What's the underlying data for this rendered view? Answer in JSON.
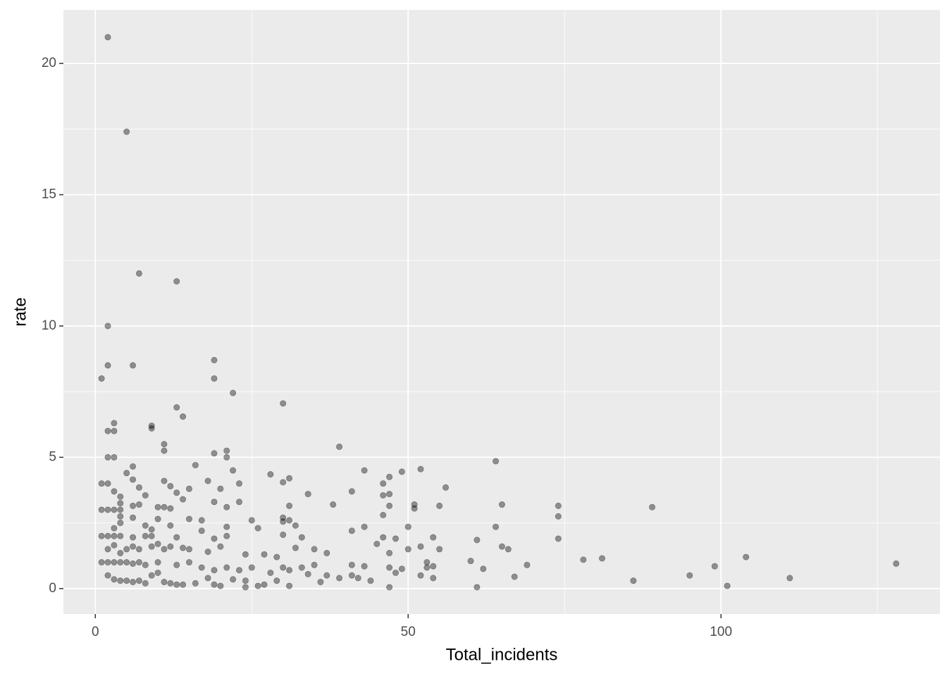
{
  "chart_data": {
    "type": "scatter",
    "x_label": "Total_incidents",
    "y_label": "rate",
    "xlim": [
      -5.1,
      135
    ],
    "ylim": [
      -0.97,
      22.04
    ],
    "xticks": [
      0,
      50,
      100
    ],
    "yticks": [
      0,
      5,
      10,
      15,
      20
    ],
    "x_minor_grid": [
      25,
      75,
      125
    ],
    "y_minor_grid": [
      2.5,
      7.5,
      12.5,
      17.5
    ],
    "grid": true,
    "color": "rgba(0,0,0,0.4)",
    "x": [
      2,
      5,
      7,
      13,
      2,
      2,
      6,
      1,
      19,
      19,
      22,
      30,
      13,
      14,
      9,
      9,
      3,
      2,
      3,
      11,
      11,
      39,
      64,
      2,
      3,
      19,
      21,
      21,
      6,
      16,
      5,
      22,
      28,
      31,
      30,
      43,
      49,
      52,
      47,
      46,
      56,
      1,
      2,
      6,
      11,
      12,
      18,
      23,
      7,
      15,
      20,
      13,
      8,
      4,
      3,
      34,
      41,
      46,
      47,
      14,
      19,
      23,
      31,
      38,
      47,
      51,
      51,
      55,
      65,
      74,
      89,
      1,
      2,
      3,
      4,
      6,
      7,
      10,
      11,
      12,
      21,
      4,
      30,
      30,
      31,
      4,
      6,
      10,
      15,
      17,
      25,
      46,
      74,
      3,
      4,
      8,
      9,
      12,
      17,
      21,
      26,
      32,
      41,
      43,
      50,
      64,
      1,
      2,
      3,
      4,
      6,
      8,
      9,
      13,
      19,
      21,
      30,
      33,
      46,
      48,
      54,
      61,
      74,
      2,
      3,
      4,
      5,
      6,
      7,
      9,
      10,
      11,
      12,
      14,
      15,
      18,
      20,
      24,
      27,
      29,
      32,
      35,
      37,
      45,
      47,
      50,
      52,
      53,
      55,
      60,
      65,
      66,
      69,
      78,
      81,
      104,
      128,
      99,
      1,
      2,
      3,
      4,
      5,
      6,
      7,
      8,
      10,
      13,
      15,
      17,
      19,
      21,
      23,
      25,
      28,
      30,
      31,
      33,
      35,
      41,
      43,
      47,
      49,
      53,
      54,
      62,
      2,
      3,
      4,
      5,
      6,
      7,
      8,
      9,
      10,
      11,
      12,
      13,
      14,
      16,
      18,
      19,
      20,
      22,
      24,
      24,
      26,
      27,
      29,
      31,
      34,
      36,
      37,
      39,
      41,
      42,
      44,
      47,
      48,
      52,
      54,
      61,
      67,
      86,
      95,
      101,
      111
    ],
    "values": [
      21,
      17.4,
      12,
      11.7,
      10,
      8.5,
      8.5,
      8,
      8.7,
      8,
      7.45,
      7.05,
      6.9,
      6.55,
      6.2,
      6.1,
      6.3,
      6,
      6,
      5.5,
      5.25,
      5.4,
      4.85,
      5,
      5,
      5.15,
      5.25,
      5,
      4.65,
      4.7,
      4.4,
      4.5,
      4.35,
      4.2,
      4.05,
      4.5,
      4.45,
      4.55,
      4.25,
      4,
      3.85,
      4,
      4,
      4.15,
      4.1,
      3.9,
      4.1,
      4,
      3.85,
      3.8,
      3.8,
      3.65,
      3.55,
      3.5,
      3.7,
      3.6,
      3.7,
      3.55,
      3.6,
      3.4,
      3.3,
      3.3,
      3.15,
      3.2,
      3.15,
      3.2,
      3.05,
      3.15,
      3.2,
      3.15,
      3.1,
      3,
      3,
      3,
      3.25,
      3.15,
      3.2,
      3.1,
      3.1,
      3.05,
      3.1,
      3,
      2.7,
      2.55,
      2.6,
      2.75,
      2.7,
      2.65,
      2.65,
      2.6,
      2.6,
      2.8,
      2.75,
      2.3,
      2.5,
      2.4,
      2.25,
      2.4,
      2.2,
      2.35,
      2.3,
      2.4,
      2.2,
      2.35,
      2.35,
      2.35,
      2,
      2,
      2,
      2,
      1.95,
      2,
      2,
      1.95,
      1.9,
      2,
      2.05,
      1.95,
      1.95,
      1.9,
      1.95,
      1.85,
      1.9,
      1.5,
      1.65,
      1.35,
      1.5,
      1.6,
      1.5,
      1.6,
      1.7,
      1.5,
      1.6,
      1.55,
      1.5,
      1.4,
      1.6,
      1.3,
      1.3,
      1.2,
      1.55,
      1.5,
      1.35,
      1.7,
      1.35,
      1.5,
      1.6,
      1,
      1.5,
      1.05,
      1.6,
      1.5,
      0.9,
      1.1,
      1.15,
      1.2,
      0.95,
      0.85,
      1,
      1,
      1,
      1,
      1,
      0.95,
      1,
      0.9,
      1,
      0.9,
      1,
      0.8,
      0.7,
      0.8,
      0.7,
      0.8,
      0.6,
      0.8,
      0.7,
      0.8,
      0.9,
      0.9,
      0.85,
      0.8,
      0.75,
      0.8,
      0.85,
      0.75,
      0.5,
      0.35,
      0.3,
      0.3,
      0.25,
      0.3,
      0.2,
      0.5,
      0.6,
      0.25,
      0.2,
      0.15,
      0.15,
      0.2,
      0.4,
      0.15,
      0.1,
      0.35,
      0.3,
      0.05,
      0.1,
      0.15,
      0.3,
      0.1,
      0.55,
      0.25,
      0.5,
      0.4,
      0.5,
      0.4,
      0.3,
      0.05,
      0.6,
      0.5,
      0.4,
      0.05,
      0.45,
      0.3,
      0.5,
      0.1,
      0.4
    ]
  }
}
